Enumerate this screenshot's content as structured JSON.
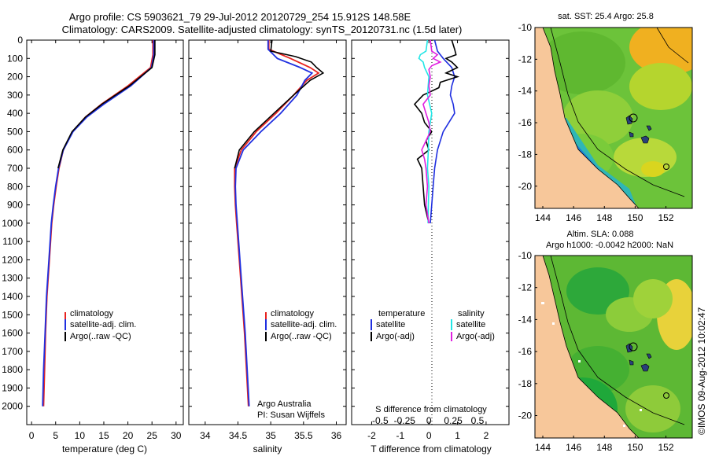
{
  "header": {
    "line1": "Argo profile: CS 5903621_79 29-Jul-2012 20120729_254 15.912S 148.58E",
    "line2": "Climatology: CARS2009. Satellite-adjusted climatology: synTS_20120731.nc (1.5d later)"
  },
  "colors": {
    "climatology": "#e8231f",
    "satellite": "#1f2fe0",
    "argo": "#000000",
    "sal_satellite": "#22e6e6",
    "sal_argo": "#e020e0",
    "land": "#f7c79a"
  },
  "depth_axis": {
    "ticks": [
      0,
      100,
      200,
      300,
      400,
      500,
      600,
      700,
      800,
      900,
      1000,
      1100,
      1200,
      1300,
      1400,
      1500,
      1600,
      1700,
      1800,
      1900,
      2000
    ]
  },
  "legend": {
    "climatology": "climatology",
    "satellite_adj": "satellite-adj. clim.",
    "argo_raw": "Argo(..raw -QC)"
  },
  "chart_data": [
    {
      "type": "line",
      "name": "temperature",
      "xlabel": "temperature (deg C)",
      "xlim": [
        -1,
        31.5
      ],
      "xticks": [
        0,
        5,
        10,
        15,
        20,
        25,
        30
      ],
      "ylim": [
        0,
        2100
      ],
      "series": [
        {
          "name": "climatology",
          "depth": [
            0,
            80,
            150,
            250,
            350,
            420,
            500,
            600,
            700,
            800,
            900,
            1000,
            1200,
            1400,
            1600,
            1800,
            2000
          ],
          "values": [
            25.2,
            25.2,
            24.7,
            20.0,
            14.5,
            11.2,
            8.5,
            6.6,
            5.7,
            5.1,
            4.6,
            4.2,
            3.7,
            3.2,
            2.9,
            2.7,
            2.5
          ]
        },
        {
          "name": "satellite-adj. clim.",
          "depth": [
            0,
            80,
            150,
            250,
            350,
            420,
            500,
            600,
            700,
            800,
            900,
            1000,
            1200,
            1400,
            1600,
            1800,
            2000
          ],
          "values": [
            25.4,
            25.4,
            24.9,
            20.6,
            15.0,
            11.5,
            8.6,
            6.6,
            5.6,
            5.0,
            4.5,
            4.1,
            3.6,
            3.1,
            2.8,
            2.5,
            2.3
          ]
        },
        {
          "name": "Argo(..raw -QC)",
          "depth": [
            0,
            80,
            150,
            250,
            350,
            420,
            500,
            600,
            700
          ],
          "values": [
            25.6,
            25.6,
            25.0,
            20.3,
            14.6,
            11.2,
            8.4,
            6.5,
            5.5
          ]
        }
      ]
    },
    {
      "type": "line",
      "name": "salinity",
      "xlabel": "salinity",
      "xlim": [
        33.75,
        36.15
      ],
      "xticks": [
        34,
        34.5,
        35,
        35.5,
        36
      ],
      "ylim": [
        0,
        2100
      ],
      "series": [
        {
          "name": "climatology",
          "depth": [
            0,
            50,
            100,
            150,
            180,
            220,
            300,
            400,
            500,
            600,
            700,
            800,
            900,
            1000,
            1200,
            1400,
            1600,
            1800,
            2000
          ],
          "values": [
            34.97,
            34.97,
            35.3,
            35.6,
            35.73,
            35.55,
            35.35,
            35.08,
            34.78,
            34.55,
            34.45,
            34.45,
            34.46,
            34.48,
            34.52,
            34.56,
            34.6,
            34.63,
            34.66
          ]
        },
        {
          "name": "satellite-adj. clim.",
          "depth": [
            0,
            50,
            100,
            150,
            180,
            220,
            300,
            400,
            500,
            600,
            700,
            800,
            900,
            1000,
            1200,
            1400,
            1600,
            1800,
            2000
          ],
          "values": [
            34.96,
            34.96,
            35.1,
            35.45,
            35.63,
            35.52,
            35.4,
            35.15,
            34.85,
            34.58,
            34.47,
            34.46,
            34.47,
            34.49,
            34.53,
            34.57,
            34.61,
            34.64,
            34.67
          ]
        },
        {
          "name": "Argo(..raw -QC)",
          "depth": [
            0,
            60,
            90,
            120,
            150,
            180,
            220,
            300,
            400,
            500,
            600,
            700
          ],
          "values": [
            35.02,
            35.0,
            35.38,
            35.62,
            35.7,
            35.8,
            35.6,
            35.35,
            35.05,
            34.75,
            34.52,
            34.45
          ]
        }
      ]
    },
    {
      "type": "line",
      "name": "difference",
      "xlabel_top": "S difference from climatology",
      "xlabel": "T difference from climatology",
      "xlim_T": [
        -2.7,
        2.8
      ],
      "xticks_T": [
        -2,
        -1,
        0,
        1,
        2
      ],
      "xticks_S": [
        "-0.5",
        "-0.25",
        "0",
        "0.25",
        "0.5"
      ],
      "ylim": [
        0,
        2100
      ],
      "legend": {
        "temperature": "temperature",
        "salinity": "salinity",
        "satellite": "satellite",
        "argo": "Argo(-adj)"
      },
      "series": [
        {
          "name": "temperature satellite",
          "depth": [
            0,
            60,
            100,
            150,
            200,
            250,
            300,
            350,
            400,
            450,
            500,
            600,
            700,
            800,
            900,
            1000
          ],
          "values": [
            0.2,
            0.3,
            0.5,
            0.8,
            0.9,
            0.8,
            0.75,
            0.85,
            0.9,
            0.7,
            0.5,
            0.3,
            0.2,
            0.15,
            0.1,
            0.05
          ]
        },
        {
          "name": "temperature Argo(-adj)",
          "depth": [
            0,
            50,
            80,
            100,
            120,
            150,
            180,
            200,
            230,
            260,
            300,
            350,
            400,
            450,
            500,
            550,
            600,
            650,
            700,
            800,
            900,
            1000
          ],
          "values": [
            0.8,
            0.9,
            0.95,
            0.6,
            0.8,
            1.0,
            0.6,
            1.0,
            0.4,
            0.35,
            -0.2,
            -0.5,
            -0.25,
            -0.15,
            0.1,
            -0.1,
            0.0,
            -0.4,
            -0.25,
            -0.2,
            -0.15,
            0.0
          ]
        },
        {
          "name": "salinity satellite",
          "depth": [
            0,
            60,
            80,
            100,
            120,
            150,
            200,
            300,
            400,
            500,
            600,
            700,
            800,
            900,
            1000
          ],
          "values": [
            -0.05,
            -0.1,
            -0.3,
            -0.35,
            -0.2,
            -0.15,
            0.0,
            -0.05,
            0.1,
            0.0,
            -0.02,
            -0.05,
            0.0,
            -0.02,
            -0.03
          ]
        },
        {
          "name": "salinity Argo(-adj)",
          "depth": [
            0,
            60,
            80,
            100,
            120,
            140,
            160,
            200,
            250,
            300,
            350,
            400,
            450,
            500,
            550,
            600,
            650,
            700,
            800,
            900,
            1000
          ],
          "values": [
            0.05,
            0.1,
            0.3,
            0.15,
            0.4,
            0.1,
            0.0,
            0.05,
            0.0,
            0.05,
            -0.2,
            -0.1,
            0.0,
            0.05,
            -0.1,
            -0.25,
            -0.15,
            -0.1,
            -0.05,
            -0.1,
            0.0
          ]
        }
      ]
    }
  ],
  "profile_notes": {
    "line1": "Argo Australia",
    "line2": "PI: Susan Wijffels"
  },
  "maps": {
    "sst_title": "sat. SST: 25.4 Argo: 25.8",
    "sla_title1": "Altim. SLA: 0.088",
    "sla_title2": "Argo h1000: -0.0042 h2000: NaN",
    "lat_ticks": [
      "-10",
      "-12",
      "-14",
      "-16",
      "-18",
      "-20"
    ],
    "lon_ticks": [
      "144",
      "146",
      "148",
      "150",
      "152"
    ]
  },
  "footer": {
    "stamp": "©IMOS 09-Aug-2012 10:02:47"
  }
}
